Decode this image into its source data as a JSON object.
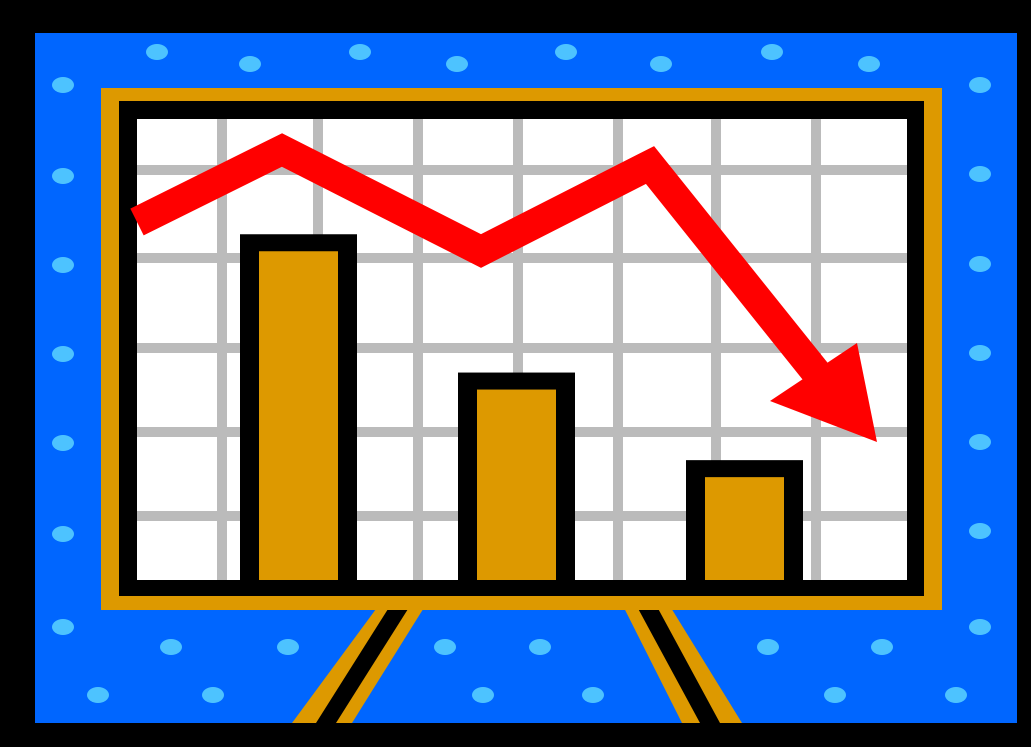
{
  "colors": {
    "outer_frame": "#000000",
    "blue_background": "#0066FF",
    "polka_dots": "#4DC3FF",
    "board_frame": "#DD9900",
    "chart_background": "#FFFFFF",
    "grid_lines": "#BBBBBB",
    "bars": "#DD9900",
    "trend_arrow": "#FF0000"
  },
  "icons": {
    "main": "declining-bar-chart-with-down-arrow-on-easel-icon"
  },
  "chart": {
    "type": "bar",
    "bar_levels": [
      0.75,
      0.45,
      0.26
    ],
    "trend": "down"
  }
}
